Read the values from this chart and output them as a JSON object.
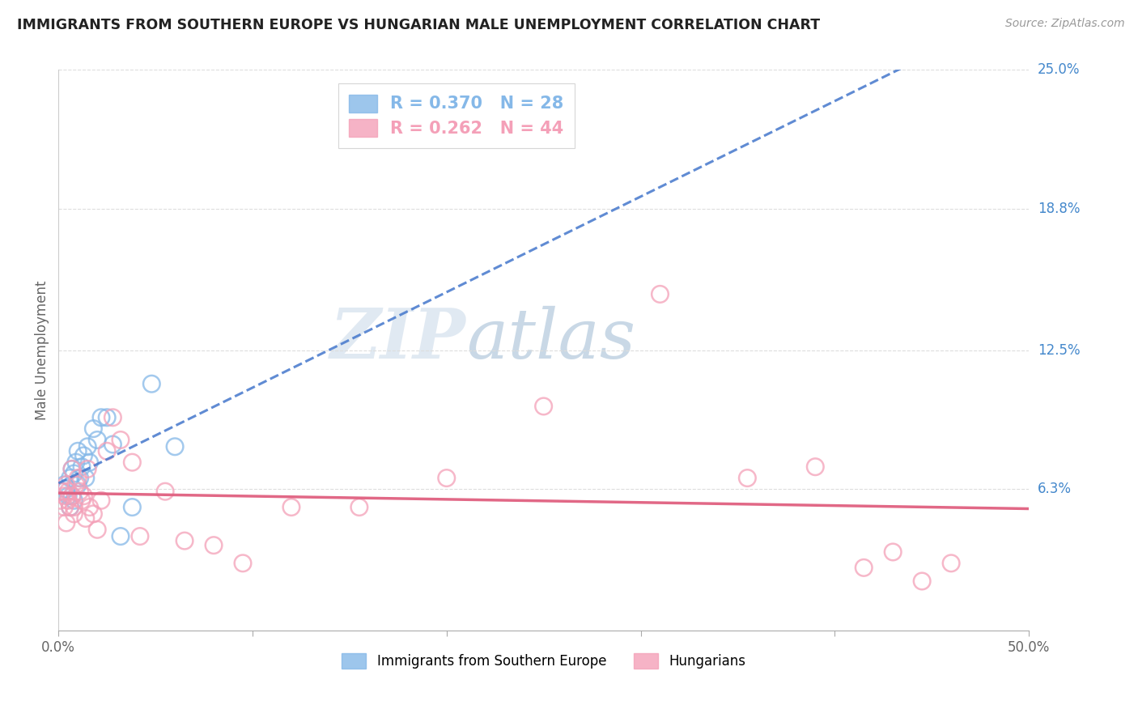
{
  "title": "IMMIGRANTS FROM SOUTHERN EUROPE VS HUNGARIAN MALE UNEMPLOYMENT CORRELATION CHART",
  "source": "Source: ZipAtlas.com",
  "ylabel": "Male Unemployment",
  "xlim": [
    0.0,
    0.5
  ],
  "ylim": [
    0.0,
    0.25
  ],
  "yticks": [
    0.063,
    0.125,
    0.188,
    0.25
  ],
  "ytick_labels": [
    "6.3%",
    "12.5%",
    "18.8%",
    "25.0%"
  ],
  "xticks": [
    0.0,
    0.1,
    0.2,
    0.3,
    0.4,
    0.5
  ],
  "xtick_labels": [
    "0.0%",
    "",
    "",
    "",
    "",
    "50.0%"
  ],
  "blue_R": 0.37,
  "blue_N": 28,
  "pink_R": 0.262,
  "pink_N": 44,
  "blue_color": "#85b8e8",
  "pink_color": "#f4a0b8",
  "trendline_blue_color": "#4477cc",
  "trendline_pink_color": "#e06080",
  "legend_label_blue": "Immigrants from Southern Europe",
  "legend_label_pink": "Hungarians",
  "watermark_zip": "ZIP",
  "watermark_atlas": "atlas",
  "blue_scatter_x": [
    0.002,
    0.003,
    0.004,
    0.005,
    0.006,
    0.006,
    0.007,
    0.007,
    0.008,
    0.008,
    0.009,
    0.01,
    0.01,
    0.011,
    0.012,
    0.013,
    0.014,
    0.015,
    0.016,
    0.018,
    0.02,
    0.022,
    0.025,
    0.028,
    0.032,
    0.038,
    0.048,
    0.06
  ],
  "blue_scatter_y": [
    0.062,
    0.065,
    0.063,
    0.06,
    0.068,
    0.055,
    0.072,
    0.06,
    0.07,
    0.058,
    0.075,
    0.065,
    0.08,
    0.068,
    0.073,
    0.078,
    0.068,
    0.082,
    0.075,
    0.09,
    0.085,
    0.095,
    0.095,
    0.083,
    0.042,
    0.055,
    0.11,
    0.082
  ],
  "pink_scatter_x": [
    0.001,
    0.002,
    0.003,
    0.003,
    0.004,
    0.004,
    0.005,
    0.005,
    0.006,
    0.007,
    0.007,
    0.008,
    0.008,
    0.009,
    0.01,
    0.011,
    0.012,
    0.013,
    0.014,
    0.015,
    0.016,
    0.018,
    0.02,
    0.022,
    0.025,
    0.028,
    0.032,
    0.038,
    0.042,
    0.055,
    0.065,
    0.08,
    0.095,
    0.12,
    0.155,
    0.2,
    0.25,
    0.31,
    0.355,
    0.39,
    0.415,
    0.43,
    0.445,
    0.46
  ],
  "pink_scatter_y": [
    0.058,
    0.062,
    0.055,
    0.06,
    0.048,
    0.065,
    0.058,
    0.062,
    0.055,
    0.072,
    0.06,
    0.055,
    0.052,
    0.065,
    0.068,
    0.062,
    0.058,
    0.06,
    0.05,
    0.072,
    0.055,
    0.052,
    0.045,
    0.058,
    0.08,
    0.095,
    0.085,
    0.075,
    0.042,
    0.062,
    0.04,
    0.038,
    0.03,
    0.055,
    0.055,
    0.068,
    0.1,
    0.15,
    0.068,
    0.073,
    0.028,
    0.035,
    0.022,
    0.03
  ]
}
